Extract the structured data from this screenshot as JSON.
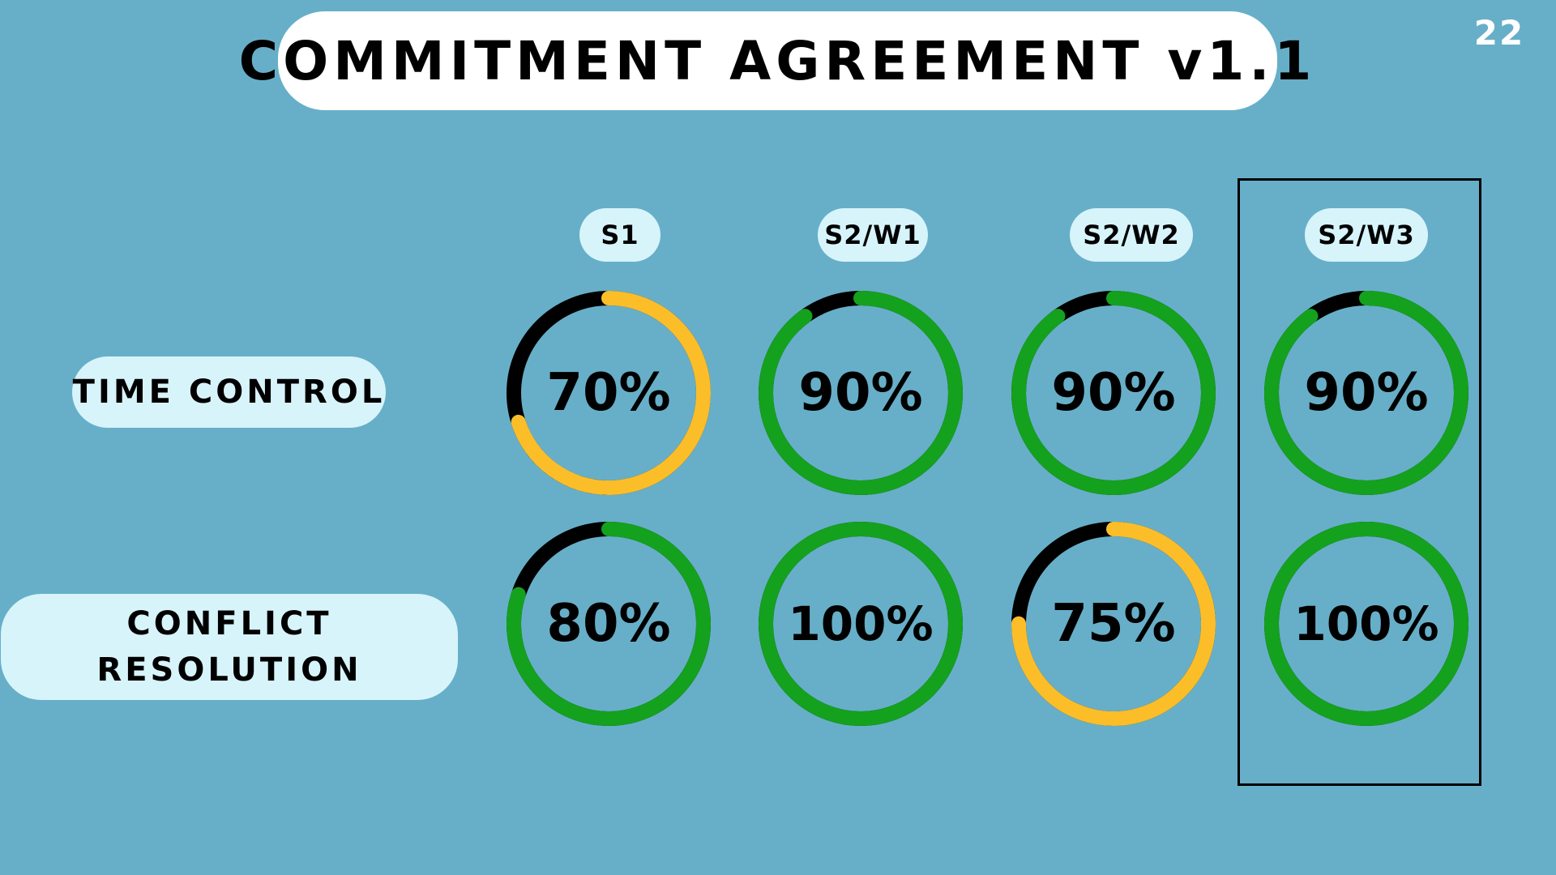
{
  "title": "COMMITMENT AGREEMENT v1.1",
  "page_number": "22",
  "columns": [
    {
      "label": "S1"
    },
    {
      "label": "S2/W1"
    },
    {
      "label": "S2/W2"
    },
    {
      "label": "S2/W3"
    }
  ],
  "rows": [
    {
      "label": "TIME CONTROL"
    },
    {
      "label": "CONFLICT\nRESOLUTION"
    }
  ],
  "highlighted_column": "S2/W3",
  "colors": {
    "background": "#67afc8",
    "pill": "#d7f4fb",
    "title_pill": "#ffffff",
    "ring_green": "#14a11d",
    "ring_yellow": "#fbbe29",
    "ring_track": "#000000"
  },
  "gauges": [
    [
      {
        "label": "70%",
        "value": 70,
        "status": "yellow"
      },
      {
        "label": "90%",
        "value": 90,
        "status": "green"
      },
      {
        "label": "90%",
        "value": 90,
        "status": "green"
      },
      {
        "label": "90%",
        "value": 90,
        "status": "green"
      }
    ],
    [
      {
        "label": "80%",
        "value": 80,
        "status": "green"
      },
      {
        "label": "100%",
        "value": 100,
        "status": "green"
      },
      {
        "label": "75%",
        "value": 75,
        "status": "yellow"
      },
      {
        "label": "100%",
        "value": 100,
        "status": "green"
      }
    ]
  ]
}
